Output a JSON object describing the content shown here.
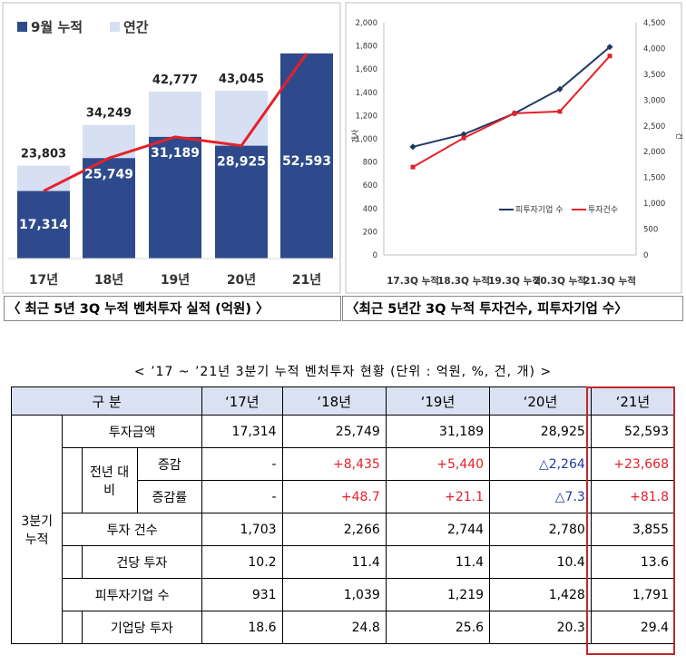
{
  "chart_data": [
    {
      "type": "bar",
      "categories": [
        "17년",
        "18년",
        "19년",
        "20년",
        "21년"
      ],
      "series": [
        {
          "name": "9월 누적",
          "values": [
            17314,
            25749,
            31189,
            28925,
            52593
          ]
        },
        {
          "name": "연간",
          "values": [
            23803,
            34249,
            42777,
            43045,
            null
          ]
        }
      ],
      "data_labels": {
        "cumulative": [
          "17,314",
          "25,749",
          "31,189",
          "28,925",
          "52,593"
        ],
        "annual": [
          "23,803",
          "34,249",
          "42,777",
          "43,045",
          ""
        ]
      },
      "legend": "top-left",
      "colors": {
        "cumulative": "#2e4a8c",
        "annual": "#d6e0f2",
        "line": "#e5212a"
      },
      "title": "",
      "xlabel": "",
      "ylabel": ""
    },
    {
      "type": "line",
      "x": [
        "17.3Q 누적",
        "18.3Q 누적",
        "19.3Q 누적",
        "20.3Q 누적",
        "21.3Q 누적"
      ],
      "series": [
        {
          "name": "피투자기업 수",
          "axis": "left",
          "values": [
            931,
            1039,
            1219,
            1428,
            1791
          ]
        },
        {
          "name": "투자건수",
          "axis": "right",
          "values": [
            1703,
            2266,
            2744,
            2780,
            3855
          ]
        }
      ],
      "ylim_left": [
        0,
        2000
      ],
      "yticks_left": [
        "2,000",
        "1,800",
        "1,600",
        "1,400",
        "1,200",
        "1,000",
        "800",
        "600",
        "400",
        "200",
        "0"
      ],
      "ylim_right": [
        0,
        4500
      ],
      "yticks_right": [
        "4,500",
        "4,000",
        "3,500",
        "3,000",
        "2,500",
        "2,000",
        "1,500",
        "1,000",
        "500",
        "0"
      ],
      "ylabel_left": "개사",
      "ylabel_right": "건",
      "legend": "bottom-right",
      "colors": {
        "firms": "#1f3864",
        "deals": "#e5212a"
      }
    }
  ],
  "captions": {
    "chart1": "〈 최근 5년 3Q 누적 벤처투자 실적 (억원) 〉",
    "chart2": "〈최근 5년간 3Q 누적 투자건수, 피투자기업 수〉"
  },
  "table": {
    "title": "< ’17 ~ ’21년 3분기 누적 벤처투자 현황 (단위 : 억원, %, 건, 개) >",
    "header_label": "구 분",
    "years": [
      "‘17년",
      "‘18년",
      "‘19년",
      "‘20년",
      "‘21년"
    ],
    "group_label": "3분기 누적",
    "sub_group_label": "전년 대비",
    "rows": {
      "amount": {
        "label": "투자금액",
        "values": [
          "17,314",
          "25,749",
          "31,189",
          "28,925",
          "52,593"
        ]
      },
      "change": {
        "label": "증감",
        "values": [
          "-",
          "+8,435",
          "+5,440",
          "△2,264",
          "+23,668"
        ]
      },
      "change_rate": {
        "label": "증감률",
        "values": [
          "-",
          "+48.7",
          "+21.1",
          "△7.3",
          "+81.8"
        ]
      },
      "deals": {
        "label": "투자 건수",
        "values": [
          "1,703",
          "2,266",
          "2,744",
          "2,780",
          "3,855"
        ]
      },
      "per_deal": {
        "label": "건당 투자",
        "values": [
          "10.2",
          "11.4",
          "11.4",
          "10.4",
          "13.6"
        ]
      },
      "firms": {
        "label": "피투자기업 수",
        "values": [
          "931",
          "1,039",
          "1,219",
          "1,428",
          "1,791"
        ]
      },
      "per_firm": {
        "label": "기업당 투자",
        "values": [
          "18.6",
          "24.8",
          "25.6",
          "20.3",
          "29.4"
        ]
      }
    }
  }
}
